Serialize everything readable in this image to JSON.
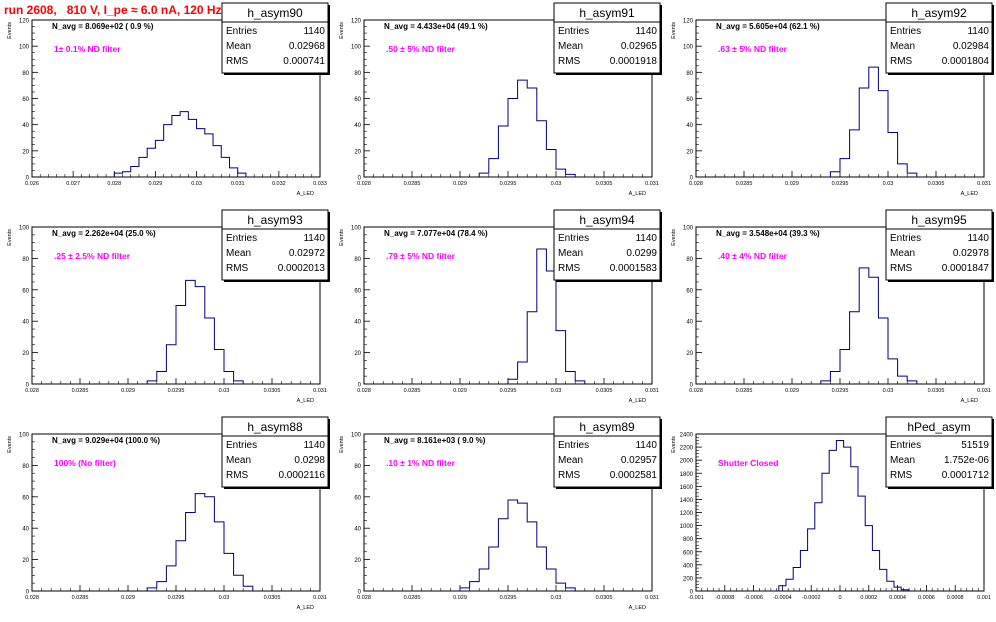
{
  "run_title": "run 2608,   810 V, I_pe ≈ 6.0 nA, 120 Hz",
  "colors": {
    "histogram": "#000080",
    "annotation": "#ff00ff",
    "title": "#ff0000",
    "text": "#000000"
  },
  "chart_data": [
    {
      "type": "bar",
      "name": "h_asym90",
      "stats": {
        "entries": "1140",
        "mean": "0.02968",
        "rms": "0.000741"
      },
      "navg": "N_avg = 8.069e+02 ( 0.9 %)",
      "filter": "1± 0.1% ND filter",
      "ylabel": "Events",
      "xlabel": "A_LED",
      "xlim": [
        0.026,
        0.033
      ],
      "ylim": [
        0,
        120
      ],
      "xticks": [
        0.026,
        0.027,
        0.028,
        0.029,
        0.03,
        0.031,
        0.032,
        0.033
      ],
      "xtick_labels": [
        "0.026",
        "0.027",
        "0.028",
        "0.029",
        "0.03",
        "0.031",
        "0.032",
        "0.033"
      ],
      "yticks": [
        0,
        20,
        40,
        60,
        80,
        100,
        120
      ],
      "x": [
        0.0281,
        0.0283,
        0.0285,
        0.0287,
        0.0289,
        0.0291,
        0.0293,
        0.0295,
        0.0297,
        0.0299,
        0.0301,
        0.0303,
        0.0305,
        0.0307,
        0.0309,
        0.0311
      ],
      "values": [
        3,
        4,
        8,
        15,
        22,
        28,
        40,
        47,
        50,
        44,
        37,
        33,
        24,
        15,
        7,
        3
      ]
    },
    {
      "type": "bar",
      "name": "h_asym91",
      "stats": {
        "entries": "1140",
        "mean": "0.02965",
        "rms": "0.0001918"
      },
      "navg": "N_avg = 4.433e+04 (49.1 %)",
      "filter": ".50 ± 5% ND filter",
      "ylabel": "Events",
      "xlabel": "A_LED",
      "xlim": [
        0.028,
        0.031
      ],
      "ylim": [
        0,
        120
      ],
      "xticks": [
        0.028,
        0.0285,
        0.029,
        0.0295,
        0.03,
        0.0305,
        0.031
      ],
      "xtick_labels": [
        "0.028",
        "0.0285",
        "0.029",
        "0.0295",
        "0.03",
        "0.0305",
        "0.031"
      ],
      "yticks": [
        0,
        20,
        40,
        60,
        80,
        100,
        120
      ],
      "x": [
        0.02925,
        0.02935,
        0.02945,
        0.02955,
        0.02965,
        0.02975,
        0.02985,
        0.02995,
        0.03005,
        0.03015
      ],
      "values": [
        3,
        14,
        39,
        60,
        74,
        68,
        43,
        21,
        6,
        2
      ]
    },
    {
      "type": "bar",
      "name": "h_asym92",
      "stats": {
        "entries": "1140",
        "mean": "0.02984",
        "rms": "0.0001804"
      },
      "navg": "N_avg = 5.605e+04 (62.1 %)",
      "filter": ".63 ± 5% ND filter",
      "ylabel": "Events",
      "xlabel": "A_LED",
      "xlim": [
        0.028,
        0.031
      ],
      "ylim": [
        0,
        120
      ],
      "xticks": [
        0.028,
        0.0285,
        0.029,
        0.0295,
        0.03,
        0.0305,
        0.031
      ],
      "xtick_labels": [
        "0.028",
        "0.0285",
        "0.029",
        "0.0295",
        "0.03",
        "0.0305",
        "0.031"
      ],
      "yticks": [
        0,
        20,
        40,
        60,
        80,
        100,
        120
      ],
      "x": [
        0.02945,
        0.02955,
        0.02965,
        0.02975,
        0.02985,
        0.02995,
        0.03005,
        0.03015,
        0.03025
      ],
      "values": [
        4,
        14,
        36,
        68,
        84,
        66,
        34,
        10,
        3
      ]
    },
    {
      "type": "bar",
      "name": "h_asym93",
      "stats": {
        "entries": "1140",
        "mean": "0.02972",
        "rms": "0.0002013"
      },
      "navg": "N_avg = 2.262e+04 (25.0 %)",
      "filter": ".25 ± 2.5% ND filter",
      "ylabel": "Events",
      "xlabel": "A_LED",
      "xlim": [
        0.028,
        0.031
      ],
      "ylim": [
        0,
        100
      ],
      "xticks": [
        0.028,
        0.0285,
        0.029,
        0.0295,
        0.03,
        0.0305,
        0.031
      ],
      "xtick_labels": [
        "0.028",
        "0.0285",
        "0.029",
        "0.0295",
        "0.03",
        "0.0305",
        "0.031"
      ],
      "yticks": [
        0,
        20,
        40,
        60,
        80,
        100
      ],
      "x": [
        0.02925,
        0.02935,
        0.02945,
        0.02955,
        0.02965,
        0.02975,
        0.02985,
        0.02995,
        0.03005,
        0.03015
      ],
      "values": [
        2,
        8,
        25,
        50,
        66,
        62,
        42,
        22,
        8,
        2
      ]
    },
    {
      "type": "bar",
      "name": "h_asym94",
      "stats": {
        "entries": "1140",
        "mean": "0.0299",
        "rms": "0.0001583"
      },
      "navg": "N_avg = 7.077e+04 (78.4 %)",
      "filter": ".79 ± 5% ND filter",
      "ylabel": "Events",
      "xlabel": "A_LED",
      "xlim": [
        0.028,
        0.031
      ],
      "ylim": [
        0,
        100
      ],
      "xticks": [
        0.028,
        0.0285,
        0.029,
        0.0295,
        0.03,
        0.0305,
        0.031
      ],
      "xtick_labels": [
        "0.028",
        "0.0285",
        "0.029",
        "0.0295",
        "0.03",
        "0.0305",
        "0.031"
      ],
      "yticks": [
        0,
        20,
        40,
        60,
        80,
        100
      ],
      "x": [
        0.02955,
        0.02965,
        0.02975,
        0.02985,
        0.02995,
        0.03005,
        0.03015,
        0.03025
      ],
      "values": [
        3,
        14,
        46,
        86,
        72,
        34,
        8,
        2
      ]
    },
    {
      "type": "bar",
      "name": "h_asym95",
      "stats": {
        "entries": "1140",
        "mean": "0.02978",
        "rms": "0.0001847"
      },
      "navg": "N_avg = 3.548e+04 (39.3 %)",
      "filter": ".40 ± 4% ND filter",
      "ylabel": "Events",
      "xlabel": "A_LED",
      "xlim": [
        0.028,
        0.031
      ],
      "ylim": [
        0,
        100
      ],
      "xticks": [
        0.028,
        0.0285,
        0.029,
        0.0295,
        0.03,
        0.0305,
        0.031
      ],
      "xtick_labels": [
        "0.028",
        "0.0285",
        "0.029",
        "0.0295",
        "0.03",
        "0.0305",
        "0.031"
      ],
      "yticks": [
        0,
        20,
        40,
        60,
        80,
        100
      ],
      "x": [
        0.02935,
        0.02945,
        0.02955,
        0.02965,
        0.02975,
        0.02985,
        0.02995,
        0.03005,
        0.03015,
        0.03025
      ],
      "values": [
        2,
        8,
        22,
        46,
        74,
        68,
        42,
        16,
        5,
        2
      ]
    },
    {
      "type": "bar",
      "name": "h_asym88",
      "stats": {
        "entries": "1140",
        "mean": "0.0298",
        "rms": "0.0002116"
      },
      "navg": "N_avg = 9.029e+04 (100.0 %)",
      "filter": "100% (No filter)",
      "ylabel": "Events",
      "xlabel": "A_LED",
      "xlim": [
        0.028,
        0.031
      ],
      "ylim": [
        0,
        100
      ],
      "xticks": [
        0.028,
        0.0285,
        0.029,
        0.0295,
        0.03,
        0.0305,
        0.031
      ],
      "xtick_labels": [
        "0.028",
        "0.0285",
        "0.029",
        "0.0295",
        "0.03",
        "0.0305",
        "0.031"
      ],
      "yticks": [
        0,
        20,
        40,
        60,
        80,
        100
      ],
      "x": [
        0.02925,
        0.02935,
        0.02945,
        0.02955,
        0.02965,
        0.02975,
        0.02985,
        0.02995,
        0.03005,
        0.03015,
        0.03025
      ],
      "values": [
        2,
        6,
        16,
        32,
        50,
        62,
        60,
        44,
        24,
        10,
        3
      ]
    },
    {
      "type": "bar",
      "name": "h_asym89",
      "stats": {
        "entries": "1140",
        "mean": "0.02957",
        "rms": "0.0002581"
      },
      "navg": "N_avg = 8.161e+03 ( 9.0 %)",
      "filter": ".10 ± 1% ND filter",
      "ylabel": "Events",
      "xlabel": "A_LED",
      "xlim": [
        0.028,
        0.031
      ],
      "ylim": [
        0,
        100
      ],
      "xticks": [
        0.028,
        0.0285,
        0.029,
        0.0295,
        0.03,
        0.0305,
        0.031
      ],
      "xtick_labels": [
        "0.028",
        "0.0285",
        "0.029",
        "0.0295",
        "0.03",
        "0.0305",
        "0.031"
      ],
      "yticks": [
        0,
        20,
        40,
        60,
        80,
        100
      ],
      "x": [
        0.02905,
        0.02915,
        0.02925,
        0.02935,
        0.02945,
        0.02955,
        0.02965,
        0.02975,
        0.02985,
        0.02995,
        0.03005,
        0.03015
      ],
      "values": [
        2,
        6,
        14,
        28,
        46,
        58,
        56,
        44,
        28,
        14,
        5,
        2
      ]
    },
    {
      "type": "bar",
      "name": "hPed_asym",
      "stats": {
        "entries": "51519",
        "mean": "1.752e-06",
        "rms": "0.0001712"
      },
      "navg": "",
      "filter": "Shutter Closed",
      "ylabel": "Events",
      "xlabel": "",
      "xlim": [
        -0.001,
        0.001
      ],
      "ylim": [
        0,
        2400
      ],
      "xticks": [
        -0.001,
        -0.0008,
        -0.0006,
        -0.0004,
        -0.0002,
        0,
        0.0002,
        0.0004,
        0.0006,
        0.0008,
        0.001
      ],
      "xtick_labels": [
        "-0.001",
        "-0.0008",
        "-0.0006",
        "-0.0004",
        "-0.0002",
        "0",
        "0.0002",
        "0.0004",
        "0.0006",
        "0.0008",
        "0.001"
      ],
      "yticks": [
        0,
        200,
        400,
        600,
        800,
        1000,
        1200,
        1400,
        1600,
        1800,
        2000,
        2200,
        2400
      ],
      "x": [
        -0.0004,
        -0.00035,
        -0.0003,
        -0.00025,
        -0.0002,
        -0.00015,
        -0.0001,
        -5e-05,
        0,
        5e-05,
        0.0001,
        0.00015,
        0.0002,
        0.00025,
        0.0003,
        0.00035,
        0.0004,
        0.00045
      ],
      "values": [
        80,
        180,
        360,
        620,
        950,
        1350,
        1800,
        2150,
        2300,
        2200,
        1900,
        1450,
        1000,
        620,
        330,
        150,
        60,
        20
      ]
    }
  ]
}
